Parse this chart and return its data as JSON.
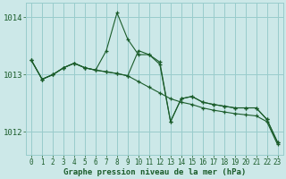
{
  "background_color": "#cce8e8",
  "grid_color": "#99cccc",
  "line_color": "#1a5c2a",
  "text_color": "#1a5c2a",
  "xlabel": "Graphe pression niveau de la mer (hPa)",
  "xlim": [
    -0.5,
    23.5
  ],
  "ylim": [
    1011.6,
    1014.25
  ],
  "yticks": [
    1012,
    1013,
    1014
  ],
  "xticks": [
    0,
    1,
    2,
    3,
    4,
    5,
    6,
    7,
    8,
    9,
    10,
    11,
    12,
    13,
    14,
    15,
    16,
    17,
    18,
    19,
    20,
    21,
    22,
    23
  ],
  "series": [
    [
      1013.25,
      1012.92,
      1013.0,
      1013.12,
      1013.2,
      1013.12,
      1013.08,
      1013.42,
      1014.08,
      1013.62,
      1013.35,
      1013.35,
      1013.18,
      1012.18,
      1012.58,
      1012.62,
      1012.52,
      1012.48,
      1012.45,
      1012.42,
      1012.42,
      1012.42,
      1012.22,
      1011.82
    ],
    [
      1013.25,
      1012.92,
      1013.0,
      1013.12,
      1013.2,
      1013.12,
      1013.08,
      1013.05,
      1013.02,
      1012.98,
      1012.88,
      1012.78,
      1012.68,
      1012.58,
      1012.52,
      1012.48,
      1012.42,
      1012.38,
      1012.35,
      1012.32,
      1012.3,
      1012.28,
      1012.18,
      1011.78
    ],
    [
      1013.25,
      1012.92,
      1013.0,
      1013.12,
      1013.2,
      1013.12,
      1013.08,
      1013.05,
      1013.02,
      1012.98,
      1013.42,
      1013.35,
      1013.22,
      1012.18,
      1012.58,
      1012.62,
      1012.52,
      1012.48,
      1012.45,
      1012.42,
      1012.42,
      1012.42,
      1012.22,
      1011.82
    ]
  ]
}
